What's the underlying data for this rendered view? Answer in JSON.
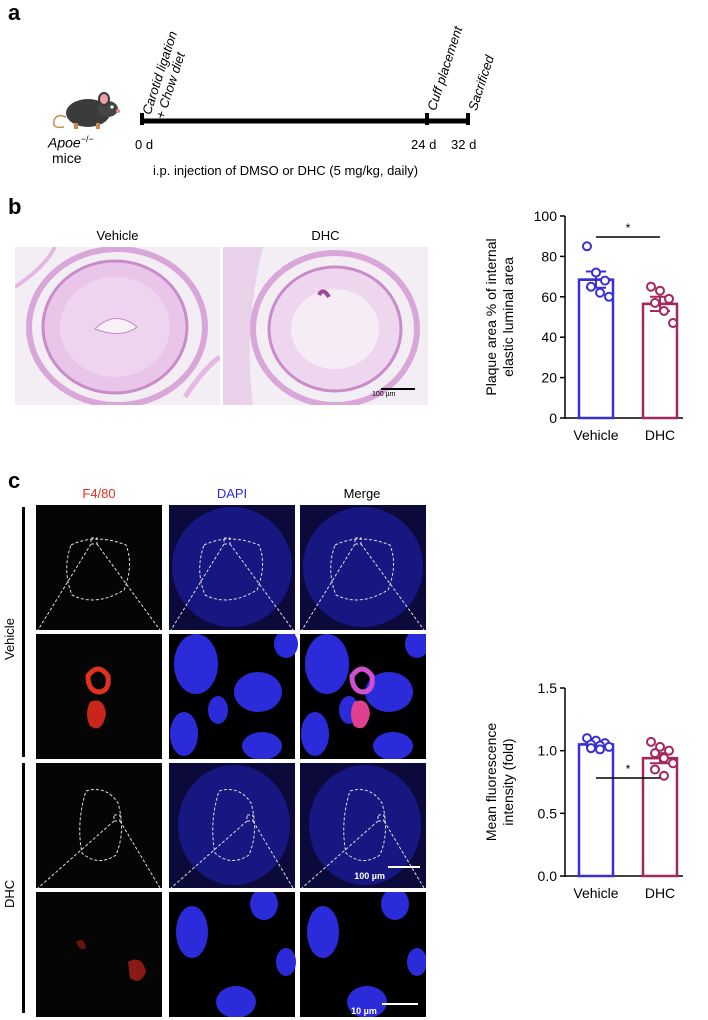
{
  "panel_a": {
    "letter": "a",
    "events": [
      {
        "label": "Carotid ligation",
        "label2": "+ Chow diet",
        "day": "0 d"
      },
      {
        "label": "Cuff placement",
        "day": "24 d"
      },
      {
        "label": "Sacrificed",
        "day": "32 d"
      }
    ],
    "mouse_strain": "Apoe",
    "mouse_superscript": "−/−",
    "mouse_word": "mice",
    "injection": "i.p. injection of DMSO or DHC (5 mg/kg, daily)"
  },
  "panel_b": {
    "letter": "b",
    "image_labels": [
      "Vehicle",
      "DHC"
    ],
    "scale_bar": "100 µm"
  },
  "panel_c": {
    "letter": "c",
    "col_labels": [
      "F4/80",
      "DAPI",
      "Merge"
    ],
    "row_labels": [
      "Vehicle",
      "DHC"
    ],
    "scale_bar_large": "100 µm",
    "scale_bar_small": "10 µm"
  },
  "colors": {
    "vehicle": "#3a2fd6",
    "dhc": "#a3285f",
    "f480": "#e0301e",
    "dapi": "#2b2bd9"
  },
  "chart_data": [
    {
      "type": "bar",
      "categories": [
        "Vehicle",
        "DHC"
      ],
      "values": [
        68.5,
        56.5
      ],
      "errors": [
        4.0,
        3.5
      ],
      "points": [
        [
          85,
          72,
          68,
          65,
          62,
          60
        ],
        [
          65,
          63,
          59,
          57,
          53,
          47
        ]
      ],
      "ylabel": "Plaque area % of internal elastic luminal area",
      "ylabel_lines": [
        "Plaque area % of internal",
        "elastic luminal area"
      ],
      "ylim": [
        0,
        100
      ],
      "yticks": [
        "0",
        "20",
        "40",
        "60",
        "80",
        "100"
      ],
      "significance": "*"
    },
    {
      "type": "bar",
      "categories": [
        "Vehicle",
        "DHC"
      ],
      "values": [
        1.05,
        0.94
      ],
      "errors": [
        0.02,
        0.04
      ],
      "points": [
        [
          1.1,
          1.08,
          1.06,
          1.05,
          1.04,
          1.03,
          1.02,
          1.01
        ],
        [
          1.07,
          1.03,
          1.0,
          0.98,
          0.94,
          0.9,
          0.85,
          0.8
        ]
      ],
      "ylabel": "Mean fluorescence intensity (fold)",
      "ylabel_lines": [
        "Mean fluorescence",
        "intensity (fold)"
      ],
      "ylim": [
        0,
        1.5
      ],
      "yticks": [
        "0.0",
        "0.5",
        "1.0",
        "1.5"
      ],
      "significance": "*"
    }
  ]
}
